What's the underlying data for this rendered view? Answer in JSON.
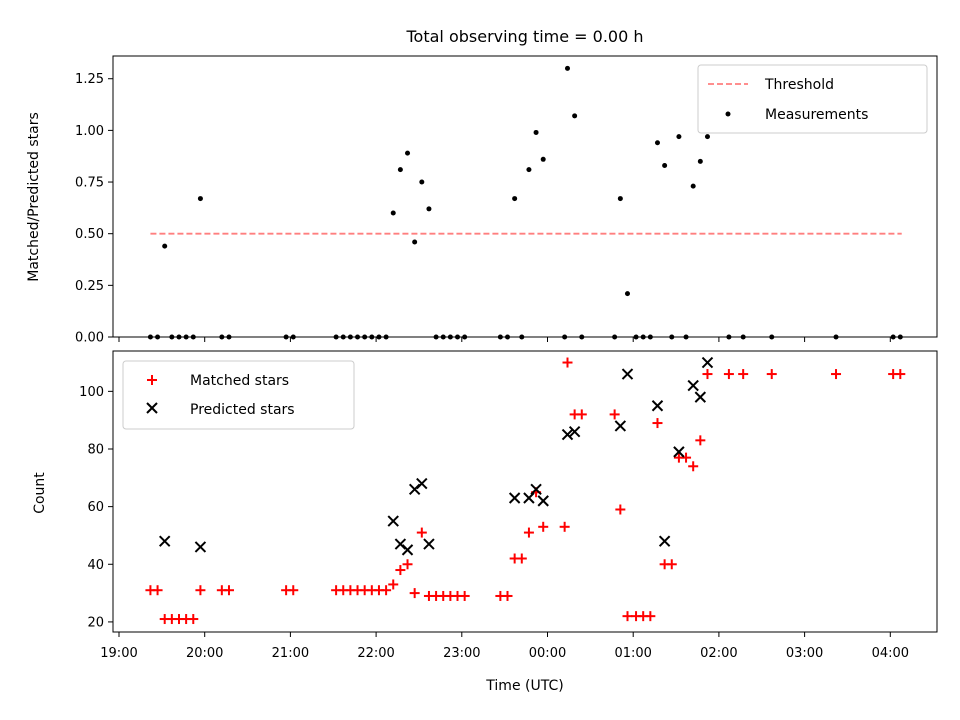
{
  "chart_data": [
    {
      "type": "scatter",
      "title": "Total observing time = 0.00 h",
      "ylabel": "Matched/Predicted stars",
      "ylim": [
        0,
        1.36
      ],
      "yticks": [
        0.0,
        0.25,
        0.5,
        0.75,
        1.0,
        1.25
      ],
      "ytick_labels": [
        "0.00",
        "0.25",
        "0.50",
        "0.75",
        "1.00",
        "1.25"
      ],
      "xlim": [
        "19:00",
        "04:35"
      ],
      "legend": {
        "position": "top-right",
        "entries": [
          "Threshold",
          "Measurements"
        ]
      },
      "threshold": {
        "name": "Threshold",
        "y": 0.5,
        "x_start": "19:22",
        "x_end": "04:08",
        "color": "#ff7f7f",
        "style": "dashed"
      },
      "series": [
        {
          "name": "Measurements",
          "color": "#000000",
          "marker": "dot",
          "points": [
            [
              "19:22",
              0
            ],
            [
              "19:27",
              0
            ],
            [
              "19:32",
              0.44
            ],
            [
              "19:37",
              0
            ],
            [
              "19:42",
              0
            ],
            [
              "19:47",
              0
            ],
            [
              "19:52",
              0
            ],
            [
              "19:57",
              0.67
            ],
            [
              "20:12",
              0
            ],
            [
              "20:17",
              0
            ],
            [
              "20:57",
              0
            ],
            [
              "21:02",
              0
            ],
            [
              "21:32",
              0
            ],
            [
              "21:37",
              0
            ],
            [
              "21:42",
              0
            ],
            [
              "21:47",
              0
            ],
            [
              "21:52",
              0
            ],
            [
              "21:57",
              0
            ],
            [
              "22:02",
              0
            ],
            [
              "22:07",
              0
            ],
            [
              "22:12",
              0.6
            ],
            [
              "22:17",
              0.81
            ],
            [
              "22:22",
              0.89
            ],
            [
              "22:27",
              0.46
            ],
            [
              "22:32",
              0.75
            ],
            [
              "22:37",
              0.62
            ],
            [
              "22:42",
              0
            ],
            [
              "22:47",
              0
            ],
            [
              "22:52",
              0
            ],
            [
              "22:57",
              0
            ],
            [
              "23:02",
              0
            ],
            [
              "23:27",
              0
            ],
            [
              "23:32",
              0
            ],
            [
              "23:37",
              0.67
            ],
            [
              "23:42",
              0
            ],
            [
              "23:47",
              0.81
            ],
            [
              "23:52",
              0.99
            ],
            [
              "23:57",
              0.86
            ],
            [
              "00:12",
              0
            ],
            [
              "00:14",
              1.3
            ],
            [
              "00:19",
              1.07
            ],
            [
              "00:24",
              0
            ],
            [
              "00:47",
              0
            ],
            [
              "00:51",
              0.67
            ],
            [
              "00:56",
              0.21
            ],
            [
              "01:02",
              0
            ],
            [
              "01:07",
              0
            ],
            [
              "01:12",
              0
            ],
            [
              "01:17",
              0.94
            ],
            [
              "01:22",
              0.83
            ],
            [
              "01:27",
              0
            ],
            [
              "01:32",
              0.97
            ],
            [
              "01:37",
              0
            ],
            [
              "01:42",
              0.73
            ],
            [
              "01:47",
              0.85
            ],
            [
              "01:52",
              0.97
            ],
            [
              "02:07",
              0
            ],
            [
              "02:17",
              0
            ],
            [
              "02:37",
              0
            ],
            [
              "03:22",
              0
            ],
            [
              "04:02",
              0
            ],
            [
              "04:07",
              0
            ]
          ]
        }
      ]
    },
    {
      "type": "scatter",
      "xlabel": "Time (UTC)",
      "ylabel": "Count",
      "ylim": [
        16.5,
        114
      ],
      "yticks": [
        20,
        40,
        60,
        80,
        100
      ],
      "ytick_labels": [
        "20",
        "40",
        "60",
        "80",
        "100"
      ],
      "xlim": [
        "19:00",
        "04:35"
      ],
      "xticks": [
        "19:00",
        "20:00",
        "21:00",
        "22:00",
        "23:00",
        "00:00",
        "01:00",
        "02:00",
        "03:00",
        "04:00"
      ],
      "legend": {
        "position": "top-left",
        "entries": [
          "Matched stars",
          "Predicted stars"
        ]
      },
      "series": [
        {
          "name": "Matched stars",
          "color": "#ff0000",
          "marker": "plus",
          "points": [
            [
              "19:22",
              31
            ],
            [
              "19:27",
              31
            ],
            [
              "19:32",
              21
            ],
            [
              "19:37",
              21
            ],
            [
              "19:42",
              21
            ],
            [
              "19:47",
              21
            ],
            [
              "19:52",
              21
            ],
            [
              "19:57",
              31
            ],
            [
              "20:12",
              31
            ],
            [
              "20:17",
              31
            ],
            [
              "20:57",
              31
            ],
            [
              "21:02",
              31
            ],
            [
              "21:32",
              31
            ],
            [
              "21:37",
              31
            ],
            [
              "21:42",
              31
            ],
            [
              "21:47",
              31
            ],
            [
              "21:52",
              31
            ],
            [
              "21:57",
              31
            ],
            [
              "22:02",
              31
            ],
            [
              "22:07",
              31
            ],
            [
              "22:12",
              33
            ],
            [
              "22:17",
              38
            ],
            [
              "22:22",
              40
            ],
            [
              "22:27",
              30
            ],
            [
              "22:32",
              51
            ],
            [
              "22:37",
              29
            ],
            [
              "22:42",
              29
            ],
            [
              "22:47",
              29
            ],
            [
              "22:52",
              29
            ],
            [
              "22:57",
              29
            ],
            [
              "23:02",
              29
            ],
            [
              "23:27",
              29
            ],
            [
              "23:32",
              29
            ],
            [
              "23:37",
              42
            ],
            [
              "23:42",
              42
            ],
            [
              "23:47",
              51
            ],
            [
              "23:52",
              65
            ],
            [
              "23:57",
              53
            ],
            [
              "00:12",
              53
            ],
            [
              "00:14",
              110
            ],
            [
              "00:19",
              92
            ],
            [
              "00:24",
              92
            ],
            [
              "00:47",
              92
            ],
            [
              "00:51",
              59
            ],
            [
              "00:56",
              22
            ],
            [
              "01:02",
              22
            ],
            [
              "01:07",
              22
            ],
            [
              "01:12",
              22
            ],
            [
              "01:17",
              89
            ],
            [
              "01:22",
              40
            ],
            [
              "01:27",
              40
            ],
            [
              "01:32",
              77
            ],
            [
              "01:37",
              77
            ],
            [
              "01:42",
              74
            ],
            [
              "01:47",
              83
            ],
            [
              "01:52",
              106
            ],
            [
              "02:07",
              106
            ],
            [
              "02:17",
              106
            ],
            [
              "02:37",
              106
            ],
            [
              "03:22",
              106
            ],
            [
              "04:02",
              106
            ],
            [
              "04:07",
              106
            ]
          ]
        },
        {
          "name": "Predicted stars",
          "color": "#000000",
          "marker": "x",
          "points": [
            [
              "19:32",
              48
            ],
            [
              "19:57",
              46
            ],
            [
              "22:12",
              55
            ],
            [
              "22:17",
              47
            ],
            [
              "22:22",
              45
            ],
            [
              "22:27",
              66
            ],
            [
              "22:32",
              68
            ],
            [
              "22:37",
              47
            ],
            [
              "23:37",
              63
            ],
            [
              "23:47",
              63
            ],
            [
              "23:52",
              66
            ],
            [
              "23:57",
              62
            ],
            [
              "00:14",
              85
            ],
            [
              "00:19",
              86
            ],
            [
              "00:51",
              88
            ],
            [
              "00:56",
              106
            ],
            [
              "01:17",
              95
            ],
            [
              "01:22",
              48
            ],
            [
              "01:32",
              79
            ],
            [
              "01:42",
              102
            ],
            [
              "01:47",
              98
            ],
            [
              "01:52",
              110
            ]
          ]
        }
      ]
    }
  ]
}
